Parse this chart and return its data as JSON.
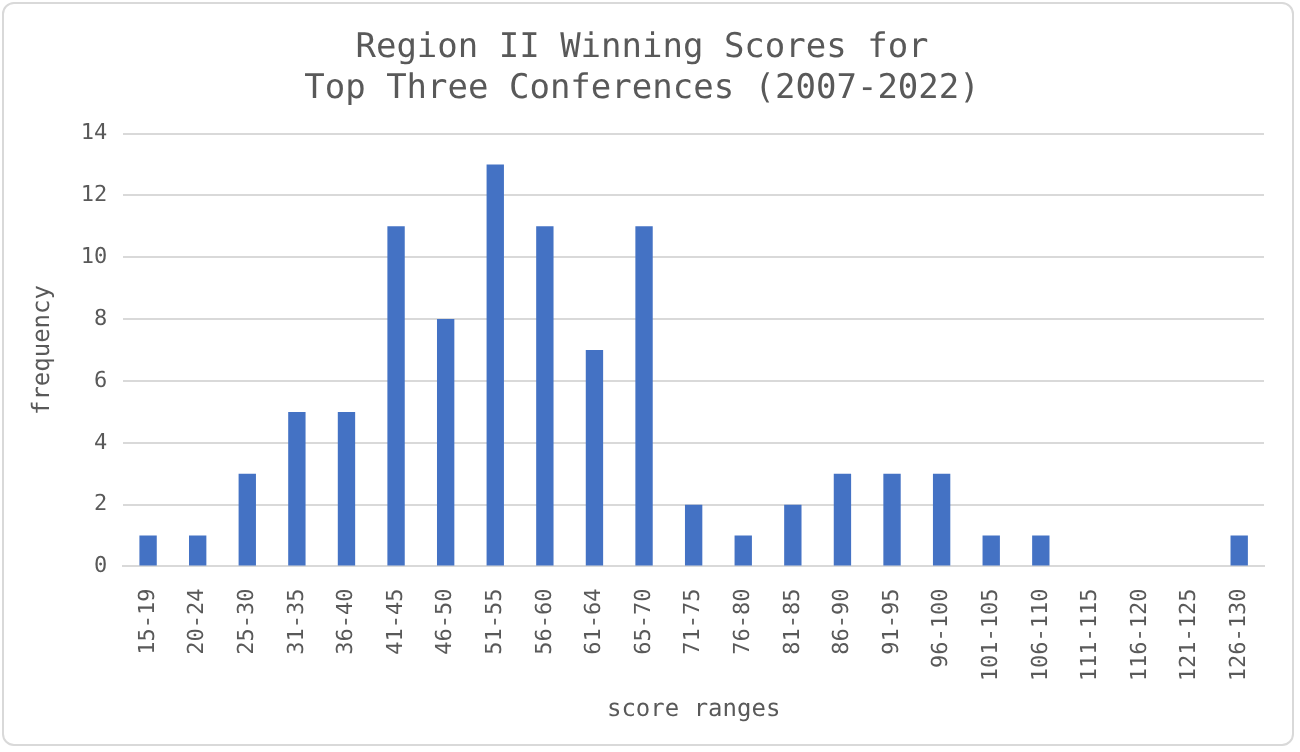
{
  "chart_data": {
    "type": "bar",
    "title": "Region II Winning Scores for\nTop Three Conferences (2007-2022)",
    "xlabel": "score ranges",
    "ylabel": "frequency",
    "categories": [
      "15-19",
      "20-24",
      "25-30",
      "31-35",
      "36-40",
      "41-45",
      "46-50",
      "51-55",
      "56-60",
      "61-64",
      "65-70",
      "71-75",
      "76-80",
      "81-85",
      "86-90",
      "91-95",
      "96-100",
      "101-105",
      "106-110",
      "111-115",
      "116-120",
      "121-125",
      "126-130"
    ],
    "values": [
      1,
      1,
      3,
      5,
      5,
      11,
      8,
      13,
      11,
      7,
      11,
      2,
      1,
      2,
      3,
      3,
      3,
      1,
      1,
      0,
      0,
      0,
      1
    ],
    "color": "#4472c4",
    "ylim": [
      0,
      14
    ],
    "yticks": [
      0,
      2,
      4,
      6,
      8,
      10,
      12,
      14
    ],
    "grid": "y",
    "legend": false
  }
}
